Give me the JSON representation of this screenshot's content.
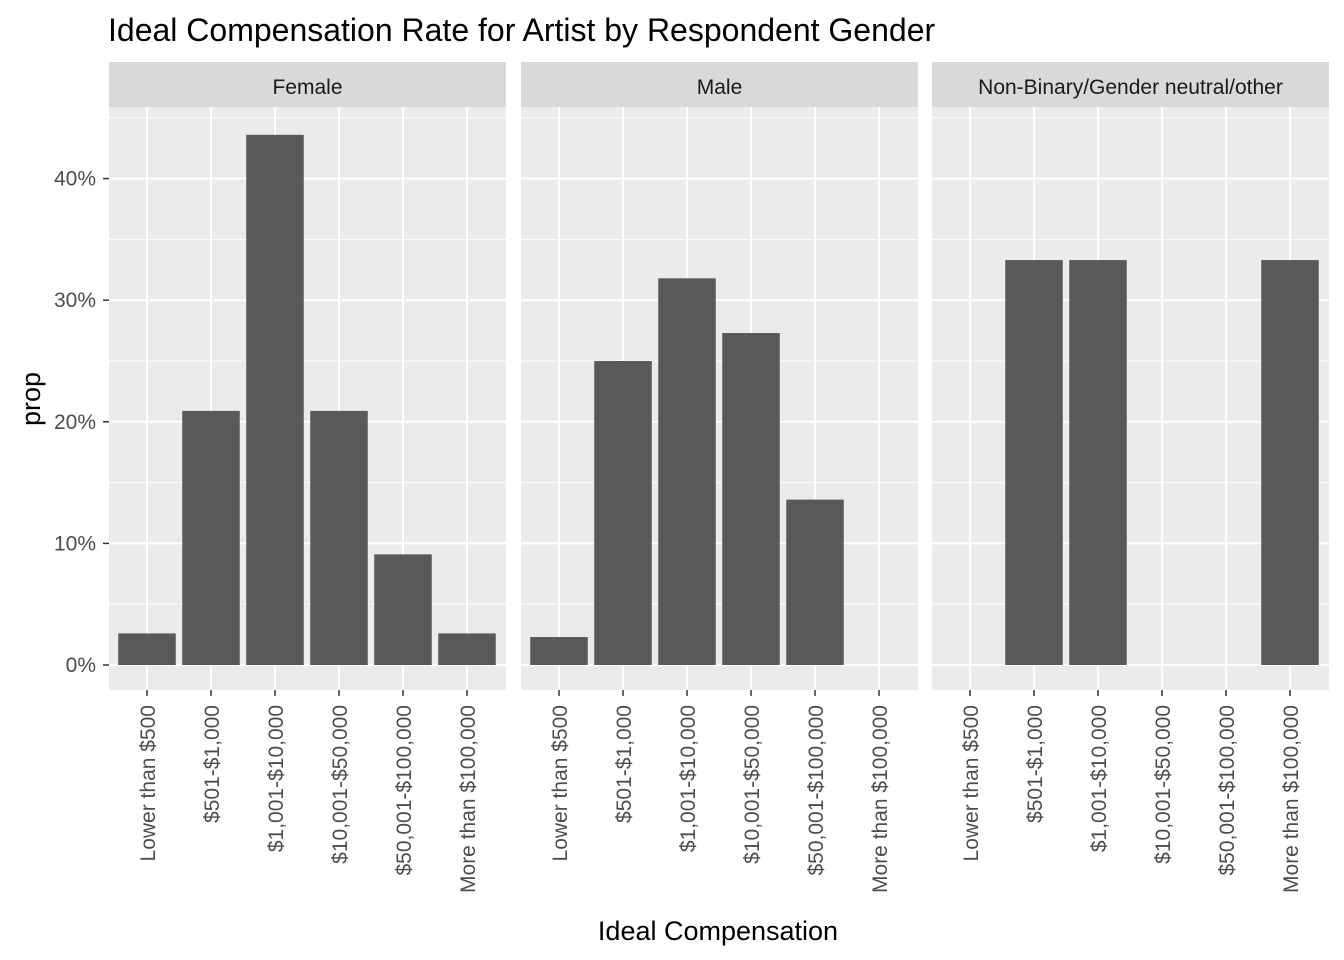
{
  "chart_data": {
    "type": "bar",
    "title": "Ideal Compensation Rate for Artist by Respondent Gender",
    "xlabel": "Ideal Compensation",
    "ylabel": "prop",
    "categories": [
      "Lower than $500",
      "$501-$1,000",
      "$1,001-$10,000",
      "$10,001-$50,000",
      "$50,001-$100,000",
      "More than $100,000"
    ],
    "y_ticks": [
      0,
      0.1,
      0.2,
      0.3,
      0.4
    ],
    "y_tick_labels": [
      "0%",
      "10%",
      "20%",
      "30%",
      "40%"
    ],
    "ylim": [
      0,
      0.458
    ],
    "grid": true,
    "bar_color": "#595959",
    "panel_background": "#ebebeb",
    "strip_background": "#d9d9d9",
    "series": [
      {
        "name": "Female",
        "values": [
          0.026,
          0.209,
          0.436,
          0.209,
          0.091,
          0.026
        ]
      },
      {
        "name": "Male",
        "values": [
          0.023,
          0.25,
          0.318,
          0.273,
          0.136,
          0
        ]
      },
      {
        "name": "Non-Binary/Gender neutral/other",
        "values": [
          0,
          0.333,
          0.333,
          0,
          0,
          0.333
        ]
      }
    ]
  }
}
